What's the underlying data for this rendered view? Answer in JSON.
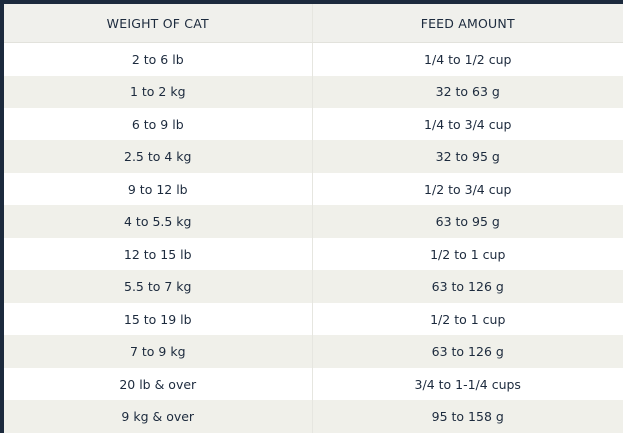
{
  "table": {
    "headers": [
      "WEIGHT OF CAT",
      "FEED AMOUNT"
    ],
    "rows": [
      [
        "2 to 6 lb",
        "1/4 to 1/2 cup"
      ],
      [
        "1 to 2 kg",
        "32 to 63 g"
      ],
      [
        "6 to 9 lb",
        "1/4 to 3/4 cup"
      ],
      [
        "2.5 to 4 kg",
        "32 to 95 g"
      ],
      [
        "9 to 12 lb",
        "1/2 to 3/4 cup"
      ],
      [
        "4 to 5.5 kg",
        "63 to 95 g"
      ],
      [
        "12 to 15 lb",
        "1/2 to 1 cup"
      ],
      [
        "5.5 to 7 kg",
        "63 to 126 g"
      ],
      [
        "15 to 19 lb",
        "1/2 to 1 cup"
      ],
      [
        "7 to 9 kg",
        "63 to 126 g"
      ],
      [
        "20 lb & over",
        "3/4 to 1-1/4 cups"
      ],
      [
        "9 kg & over",
        "95 to 158 g"
      ]
    ]
  },
  "colors": {
    "frame": "#1c2a3d",
    "header_bg": "#f0f0ec",
    "row_light": "#ffffff",
    "row_shaded": "#f0f0ea",
    "text": "#1c2a3d"
  }
}
